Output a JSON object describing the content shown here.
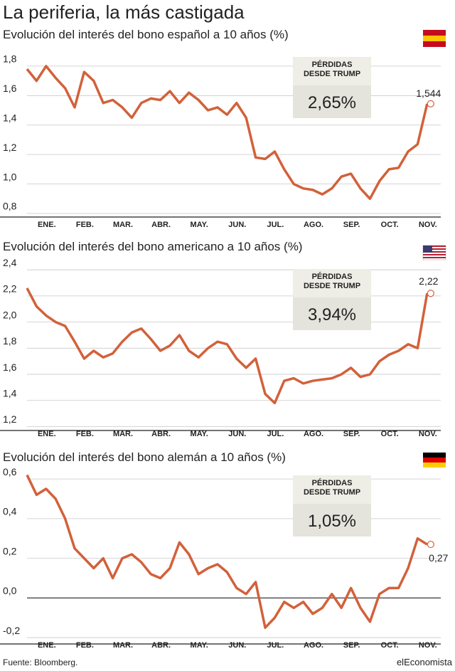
{
  "title": "La periferia, la más castigada",
  "source": "Fuente: Bloomberg.",
  "brand": "elEconomista",
  "chart_data": [
    {
      "type": "line",
      "title": "Evolución del interés del bono español a 10 años (%)",
      "categories": [
        null,
        null,
        "ENE.",
        null,
        null,
        null,
        "FEB.",
        null,
        null,
        null,
        "MAR.",
        null,
        null,
        null,
        "ABR.",
        null,
        null,
        null,
        "MAY.",
        null,
        null,
        null,
        "JUN.",
        null,
        null,
        null,
        "JUL.",
        null,
        null,
        null,
        "AGO.",
        null,
        null,
        null,
        "SEP.",
        null,
        null,
        null,
        "OCT.",
        null,
        null,
        null,
        "NOV."
      ],
      "values": [
        1.78,
        1.7,
        1.8,
        1.72,
        1.65,
        1.52,
        1.76,
        1.7,
        1.55,
        1.57,
        1.52,
        1.45,
        1.55,
        1.58,
        1.57,
        1.63,
        1.55,
        1.62,
        1.57,
        1.5,
        1.52,
        1.47,
        1.55,
        1.45,
        1.18,
        1.17,
        1.22,
        1.1,
        1.0,
        0.97,
        0.96,
        0.93,
        0.97,
        1.05,
        1.07,
        0.97,
        0.9,
        1.02,
        1.1,
        1.11,
        1.22,
        1.27,
        1.544
      ],
      "value_labels": [
        null,
        null,
        null,
        null,
        null,
        null,
        null,
        null,
        null,
        null,
        null,
        null,
        null,
        null,
        null,
        null,
        null,
        null,
        null,
        null,
        null,
        null,
        null,
        null,
        null,
        null,
        null,
        null,
        null,
        null,
        null,
        null,
        null,
        null,
        null,
        null,
        null,
        null,
        null,
        null,
        null,
        null,
        "1,544"
      ],
      "color": "#d2613a",
      "ylim": [
        0.776,
        1.92
      ],
      "yticks": [
        {
          "value": 0.8,
          "label": "0,8"
        },
        {
          "value": 1.0,
          "label": "1,0"
        },
        {
          "value": 1.2,
          "label": "1,2"
        },
        {
          "value": 1.4,
          "label": "1,4"
        },
        {
          "value": 1.6,
          "label": "1,6"
        },
        {
          "value": 1.8,
          "label": "1,8"
        }
      ],
      "grid": true,
      "box_lines": [
        "PÉRDIDAS",
        "DESDE TRUMP"
      ],
      "box_value": "2,65%"
    },
    {
      "type": "line",
      "title": "Evolución del interés del bono americano a 10 años (%)",
      "categories": [
        null,
        null,
        "ENE.",
        null,
        null,
        null,
        "FEB.",
        null,
        null,
        null,
        "MAR.",
        null,
        null,
        null,
        "ABR.",
        null,
        null,
        null,
        "MAY.",
        null,
        null,
        null,
        "JUN.",
        null,
        null,
        null,
        "JUL.",
        null,
        null,
        null,
        "AGO.",
        null,
        null,
        null,
        "SEP.",
        null,
        null,
        null,
        "OCT.",
        null,
        null,
        null,
        "NOV."
      ],
      "values": [
        2.26,
        2.12,
        2.05,
        2.0,
        1.97,
        1.85,
        1.72,
        1.78,
        1.73,
        1.76,
        1.85,
        1.92,
        1.95,
        1.87,
        1.78,
        1.82,
        1.9,
        1.78,
        1.73,
        1.8,
        1.85,
        1.83,
        1.72,
        1.65,
        1.72,
        1.45,
        1.38,
        1.55,
        1.57,
        1.53,
        1.55,
        1.56,
        1.57,
        1.6,
        1.65,
        1.58,
        1.6,
        1.7,
        1.75,
        1.78,
        1.83,
        1.8,
        2.22
      ],
      "value_labels": [
        null,
        null,
        null,
        null,
        null,
        null,
        null,
        null,
        null,
        null,
        null,
        null,
        null,
        null,
        null,
        null,
        null,
        null,
        null,
        null,
        null,
        null,
        null,
        null,
        null,
        null,
        null,
        null,
        null,
        null,
        null,
        null,
        null,
        null,
        null,
        null,
        null,
        null,
        null,
        null,
        null,
        null,
        "2,22"
      ],
      "color": "#d2613a",
      "ylim": [
        1.17,
        2.45
      ],
      "yticks": [
        {
          "value": 1.2,
          "label": "1,2"
        },
        {
          "value": 1.4,
          "label": "1,4"
        },
        {
          "value": 1.6,
          "label": "1,6"
        },
        {
          "value": 1.8,
          "label": "1,8"
        },
        {
          "value": 2.0,
          "label": "2,0"
        },
        {
          "value": 2.2,
          "label": "2,2"
        },
        {
          "value": 2.4,
          "label": "2,4"
        }
      ],
      "grid": true,
      "box_lines": [
        "PÉRDIDAS",
        "DESDE TRUMP"
      ],
      "box_value": "3,94%"
    },
    {
      "type": "line",
      "title": "Evolución del interés del bono alemán a 10 años (%)",
      "categories": [
        null,
        null,
        "ENE.",
        null,
        null,
        null,
        "FEB.",
        null,
        null,
        null,
        "MAR.",
        null,
        null,
        null,
        "ABR.",
        null,
        null,
        null,
        "MAY.",
        null,
        null,
        null,
        "JUN.",
        null,
        null,
        null,
        "JUL.",
        null,
        null,
        null,
        "AGO.",
        null,
        null,
        null,
        "SEP.",
        null,
        null,
        null,
        "OCT.",
        null,
        null,
        null,
        "NOV."
      ],
      "values": [
        0.62,
        0.52,
        0.55,
        0.5,
        0.4,
        0.25,
        0.2,
        0.15,
        0.2,
        0.1,
        0.2,
        0.22,
        0.18,
        0.12,
        0.1,
        0.15,
        0.28,
        0.22,
        0.12,
        0.15,
        0.17,
        0.13,
        0.05,
        0.02,
        0.08,
        -0.15,
        -0.1,
        -0.02,
        -0.05,
        -0.02,
        -0.08,
        -0.05,
        0.02,
        -0.05,
        0.05,
        -0.05,
        -0.12,
        0.02,
        0.05,
        0.05,
        0.15,
        0.3,
        0.27
      ],
      "value_labels": [
        null,
        null,
        null,
        null,
        null,
        null,
        null,
        null,
        null,
        null,
        null,
        null,
        null,
        null,
        null,
        null,
        null,
        null,
        null,
        null,
        null,
        null,
        null,
        null,
        null,
        null,
        null,
        null,
        null,
        null,
        null,
        null,
        null,
        null,
        null,
        null,
        null,
        null,
        null,
        null,
        null,
        null,
        "0,27"
      ],
      "color": "#d2613a",
      "ylim": [
        -0.232,
        0.647
      ],
      "yticks": [
        {
          "value": -0.2,
          "label": "-0,2"
        },
        {
          "value": 0.0,
          "label": "0,0"
        },
        {
          "value": 0.2,
          "label": "0,2"
        },
        {
          "value": 0.4,
          "label": "0,4"
        },
        {
          "value": 0.6,
          "label": "0,6"
        }
      ],
      "grid": true,
      "box_lines": [
        "PÉRDIDAS",
        "DESDE TRUMP"
      ],
      "box_value": "1,05%"
    }
  ]
}
